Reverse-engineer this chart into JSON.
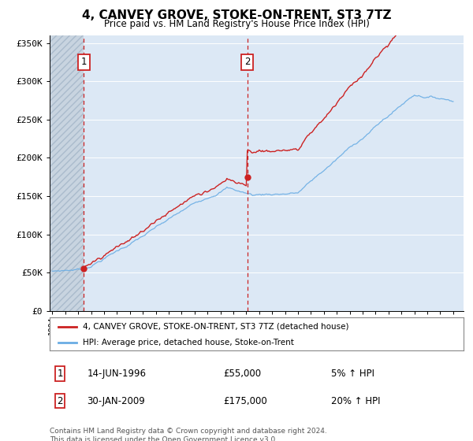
{
  "title": "4, CANVEY GROVE, STOKE-ON-TRENT, ST3 7TZ",
  "subtitle": "Price paid vs. HM Land Registry's House Price Index (HPI)",
  "hpi_color": "#6aade4",
  "price_color": "#cc2222",
  "dashed_color": "#cc2222",
  "background_plot": "#dce8f5",
  "hatch_color": "#c8d4e0",
  "ylim": [
    0,
    360000
  ],
  "yticks": [
    0,
    50000,
    100000,
    150000,
    200000,
    250000,
    300000,
    350000
  ],
  "ytick_labels": [
    "£0",
    "£50K",
    "£100K",
    "£150K",
    "£200K",
    "£250K",
    "£300K",
    "£350K"
  ],
  "sale1_year": 1996.45,
  "sale1_price": 55000,
  "sale2_year": 2009.08,
  "sale2_price": 175000,
  "legend_line1": "4, CANVEY GROVE, STOKE-ON-TRENT, ST3 7TZ (detached house)",
  "legend_line2": "HPI: Average price, detached house, Stoke-on-Trent",
  "annotation1_label": "1",
  "annotation1_date": "14-JUN-1996",
  "annotation1_price": "£55,000",
  "annotation1_hpi": "5% ↑ HPI",
  "annotation2_label": "2",
  "annotation2_date": "30-JAN-2009",
  "annotation2_price": "£175,000",
  "annotation2_hpi": "20% ↑ HPI",
  "footnote": "Contains HM Land Registry data © Crown copyright and database right 2024.\nThis data is licensed under the Open Government Licence v3.0."
}
